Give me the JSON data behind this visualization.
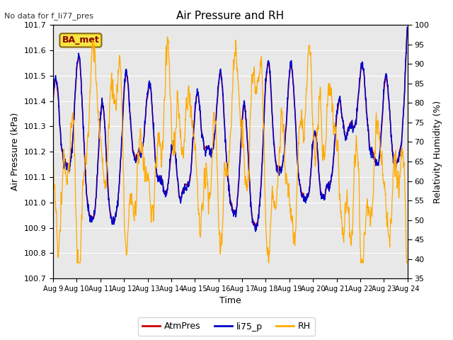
{
  "title": "Air Pressure and RH",
  "topleft_text": "No data for f_li77_pres",
  "box_label": "BA_met",
  "xlabel": "Time",
  "ylabel_left": "Air Pressure (kPa)",
  "ylabel_right": "Relativity Humidity (%)",
  "left_ylim": [
    100.7,
    101.7
  ],
  "right_ylim": [
    35,
    100
  ],
  "left_yticks": [
    100.7,
    100.8,
    100.9,
    101.0,
    101.1,
    101.2,
    101.3,
    101.4,
    101.5,
    101.6,
    101.7
  ],
  "right_yticks": [
    35,
    40,
    45,
    50,
    55,
    60,
    65,
    70,
    75,
    80,
    85,
    90,
    95,
    100
  ],
  "xtick_labels": [
    "Aug 9",
    "Aug 10",
    "Aug 11",
    "Aug 12",
    "Aug 13",
    "Aug 14",
    "Aug 15",
    "Aug 16",
    "Aug 17",
    "Aug 18",
    "Aug 19",
    "Aug 20",
    "Aug 21",
    "Aug 22",
    "Aug 23",
    "Aug 24"
  ],
  "atm_color": "#cc0000",
  "li75_color": "#0000cc",
  "rh_color": "#ffaa00",
  "plot_bg_color": "#e8e8e8",
  "grid_color": "#ffffff",
  "legend_items": [
    "AtmPres",
    "li75_p",
    "RH"
  ],
  "title_fontsize": 11,
  "label_fontsize": 9,
  "tick_fontsize": 8,
  "topleft_fontsize": 8
}
